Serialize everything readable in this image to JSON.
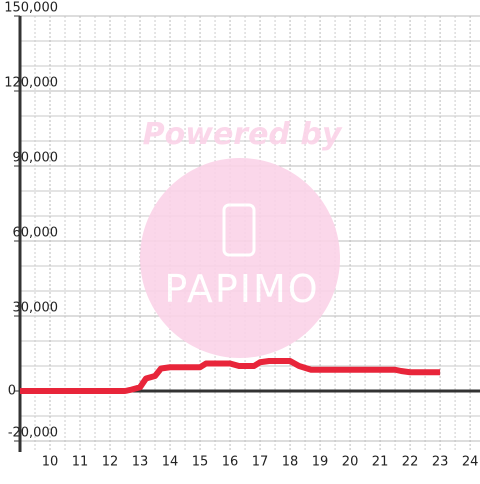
{
  "chart_data": {
    "type": "line",
    "watermark": {
      "caption": "Powered by",
      "logo": "PAPIMO"
    },
    "x": [
      9,
      12.5,
      12.7,
      13,
      13.2,
      13.5,
      13.7,
      14,
      15,
      15.2,
      16,
      16.3,
      16.8,
      17,
      17.3,
      18,
      18.3,
      18.7,
      19,
      20,
      21,
      21.5,
      21.7,
      22,
      23
    ],
    "series": [
      {
        "color": "#e8253a",
        "values": [
          0,
          0,
          500,
          1500,
          5000,
          6000,
          9000,
          9500,
          9500,
          11000,
          11000,
          10000,
          10000,
          11500,
          12000,
          12000,
          10000,
          8500,
          8500,
          8500,
          8500,
          8500,
          8000,
          7500,
          7500
        ]
      }
    ],
    "xlim": [
      9,
      24.33
    ],
    "xticks": [
      10,
      11,
      12,
      13,
      14,
      15,
      16,
      17,
      18,
      19,
      20,
      21,
      22,
      23,
      24
    ],
    "xminorticks": [
      9.5,
      10.5,
      11.5,
      12.5,
      13.5,
      14.5,
      15.5,
      16.5,
      17.5,
      18.5,
      19.5,
      20.5,
      21.5,
      22.5,
      23.5
    ],
    "ylim": [
      -20000,
      150000
    ],
    "yticks": [
      {
        "value": -20000,
        "label": "-20,000"
      },
      0,
      {
        "value": 30000,
        "label": "30,000"
      },
      {
        "value": 60000,
        "label": "60,000"
      },
      {
        "value": 90000,
        "label": "90,000"
      },
      {
        "value": 120000,
        "label": "120,000"
      },
      {
        "value": 150000,
        "label": "150,000"
      }
    ],
    "yminorticks": [
      -10000,
      10000,
      20000,
      40000,
      50000,
      70000,
      80000,
      100000,
      110000,
      130000,
      140000
    ],
    "grid": true
  }
}
